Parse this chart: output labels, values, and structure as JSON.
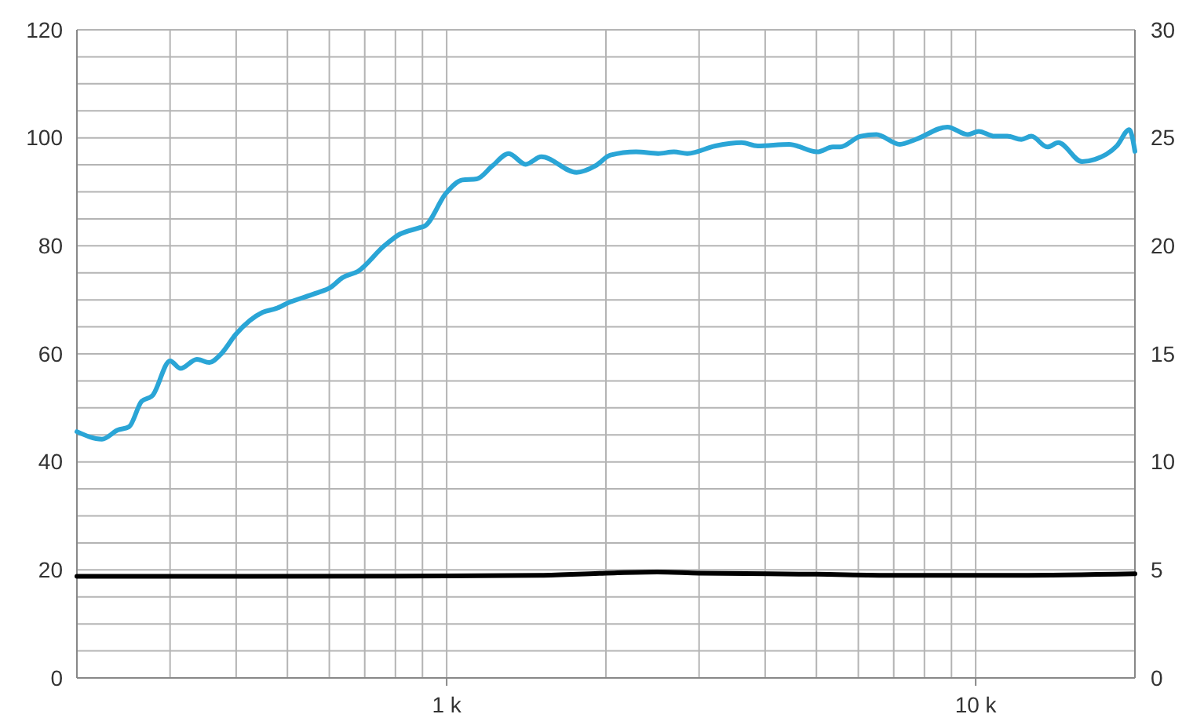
{
  "chart_data": {
    "type": "line",
    "log": "x",
    "grid": true,
    "line_style": "solid",
    "xlim": [
      200,
      20000
    ],
    "xticks": [
      {
        "value": 200,
        "label": null
      },
      {
        "value": 300,
        "label": null
      },
      {
        "value": 400,
        "label": null
      },
      {
        "value": 500,
        "label": null
      },
      {
        "value": 600,
        "label": null
      },
      {
        "value": 700,
        "label": null
      },
      {
        "value": 800,
        "label": null
      },
      {
        "value": 900,
        "label": null
      },
      {
        "value": 1000,
        "label": "1 k"
      },
      {
        "value": 2000,
        "label": null
      },
      {
        "value": 3000,
        "label": null
      },
      {
        "value": 4000,
        "label": null
      },
      {
        "value": 5000,
        "label": null
      },
      {
        "value": 6000,
        "label": null
      },
      {
        "value": 7000,
        "label": null
      },
      {
        "value": 8000,
        "label": null
      },
      {
        "value": 9000,
        "label": null
      },
      {
        "value": 10000,
        "label": "10 k"
      },
      {
        "value": 20000,
        "label": null
      }
    ],
    "ylim": [
      0,
      120
    ],
    "yticks": [
      0,
      {
        "value": 5,
        "label": null
      },
      {
        "value": 10,
        "label": null
      },
      {
        "value": 15,
        "label": null
      },
      20,
      {
        "value": 25,
        "label": null
      },
      {
        "value": 30,
        "label": null
      },
      {
        "value": 35,
        "label": null
      },
      40,
      {
        "value": 45,
        "label": null
      },
      {
        "value": 50,
        "label": null
      },
      {
        "value": 55,
        "label": null
      },
      60,
      {
        "value": 65,
        "label": null
      },
      {
        "value": 70,
        "label": null
      },
      {
        "value": 75,
        "label": null
      },
      80,
      {
        "value": 85,
        "label": null
      },
      {
        "value": 90,
        "label": null
      },
      {
        "value": 95,
        "label": null
      },
      100,
      {
        "value": 105,
        "label": null
      },
      {
        "value": 110,
        "label": null
      },
      {
        "value": 115,
        "label": null
      },
      120
    ],
    "y2lim": [
      0,
      30
    ],
    "y2ticks": [
      0,
      5,
      10,
      15,
      20,
      25,
      30
    ],
    "series": [
      {
        "color": "#2aa5d6",
        "x": [
          200,
          223,
          239,
          251,
          265,
          278,
          300,
          314,
          337,
          356,
          374,
          400,
          449,
          476,
          503,
          565,
          605,
          635,
          680,
          760,
          810,
          892,
          910,
          998,
          1070,
          1140,
          1220,
          1310,
          1410,
          1510,
          1760,
          1910,
          2040,
          2280,
          2510,
          2690,
          2850,
          3220,
          3610,
          3870,
          4440,
          5020,
          5370,
          5540,
          6060,
          6490,
          7190,
          7700,
          8840,
          9660,
          10130,
          10850,
          11470,
          12200,
          12740,
          13660,
          14330,
          15890,
          16800,
          18480,
          19520,
          20000
        ],
        "values": [
          45.6,
          44.2,
          45.9,
          46.5,
          51.2,
          52.3,
          58.7,
          57.3,
          59,
          58.4,
          59.9,
          63.7,
          67.7,
          68.4,
          69.5,
          71.2,
          72.4,
          74.1,
          75.3,
          79.9,
          82,
          83.4,
          83.7,
          89.8,
          92.2,
          92.4,
          94.8,
          97.1,
          95.1,
          96.5,
          93.6,
          94.8,
          96.8,
          97.4,
          97.1,
          97.4,
          97.1,
          98.5,
          99.1,
          98.5,
          98.8,
          97.4,
          98.3,
          98.3,
          100.3,
          100.6,
          98.8,
          99.7,
          102,
          100.6,
          101.2,
          100.3,
          100.3,
          99.7,
          100.3,
          98.3,
          99.1,
          95.6,
          96,
          98.5,
          101.5,
          97.5
        ]
      },
      {
        "color": "#000000",
        "axis": "y2",
        "x": [
          200,
          1000,
          1500,
          2000,
          2500,
          3000,
          5000,
          7000,
          12000,
          20000
        ],
        "values": [
          4.7,
          4.72,
          4.75,
          4.85,
          4.9,
          4.85,
          4.8,
          4.75,
          4.75,
          4.82
        ]
      }
    ]
  }
}
